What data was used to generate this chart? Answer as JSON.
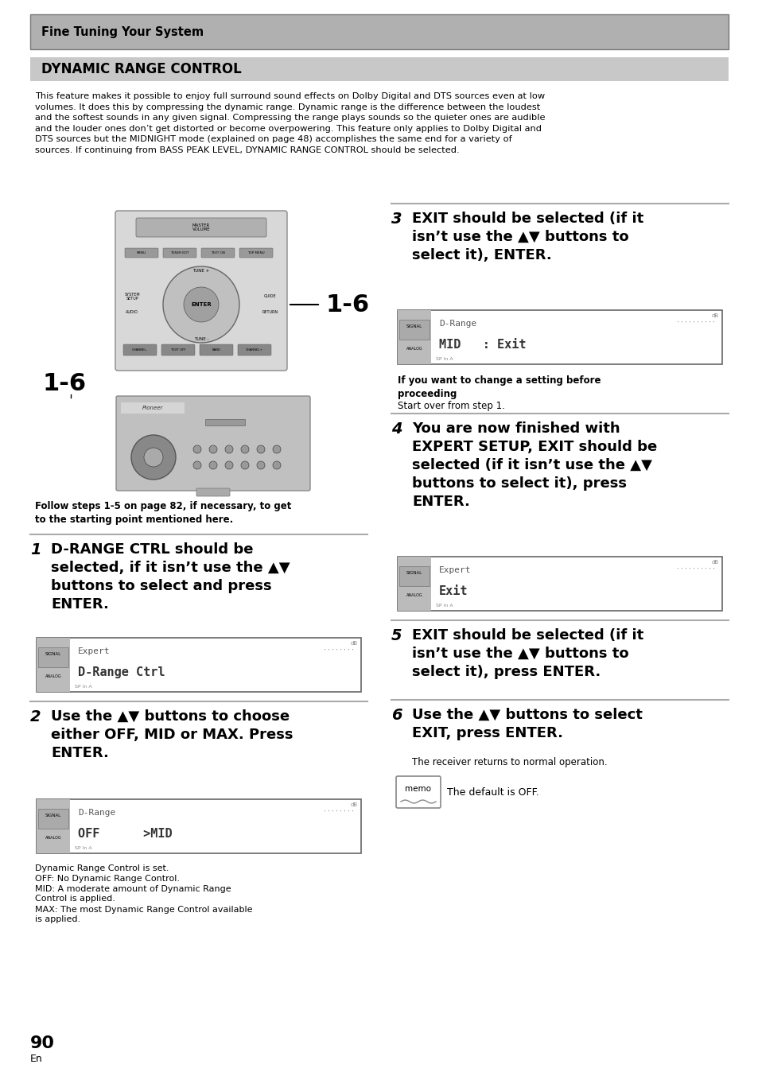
{
  "page_bg": "#ffffff",
  "header_bg": "#b0b0b0",
  "section_bg": "#c8c8c8",
  "header_text": "Fine Tuning Your System",
  "section_title": "DYNAMIC RANGE CONTROL",
  "intro_text": "This feature makes it possible to enjoy full surround sound effects on Dolby Digital and DTS sources even at low\nvolumes. It does this by compressing the dynamic range. Dynamic range is the difference between the loudest\nand the softest sounds in any given signal. Compressing the range plays sounds so the quieter ones are audible\nand the louder ones don’t get distorted or become overpowering. This feature only applies to Dolby Digital and\nDTS sources but the MIDNIGHT mode (explained on page 48) accomplishes the same end for a variety of\nsources. If continuing from BASS PEAK LEVEL, DYNAMIC RANGE CONTROL should be selected.",
  "follow_steps_text": "Follow steps 1-5 on page 82, if necessary, to get\nto the starting point mentioned here.",
  "step1_num": "1",
  "step1_bold": "D-RANGE CTRL should be\nselected, if it isn’t use the ▲▼\nbuttons to select and press\nENTER.",
  "step1_display_line1": "Expert",
  "step1_display_line2": "D-Range Ctrl",
  "step2_num": "2",
  "step2_bold": "Use the ▲▼ buttons to choose\neither OFF, MID or MAX. Press\nENTER.",
  "step2_display_line1": "D-Range",
  "step2_display_line2": "OFF      >MID",
  "step2_note1": "Dynamic Range Control is set.",
  "step2_note2": "OFF: No Dynamic Range Control.",
  "step2_note3": "MID: A moderate amount of Dynamic Range\nControl is applied.",
  "step2_note4": "MAX: The most Dynamic Range Control available\nis applied.",
  "step3_num": "3",
  "step3_bold": "EXIT should be selected (if it\nisn’t use the ▲▼ buttons to\nselect it), ENTER.",
  "step3_display_line1": "D-Range",
  "step3_display_dots1": "··········",
  "step3_display_line2": "MID   : Exit",
  "step3_note_bold": "If you want to change a setting before\nproceeding",
  "step3_note_regular": "Start over from step 1.",
  "step4_num": "4",
  "step4_bold": "You are now finished with\nEXPERT SETUP, EXIT should be\nselected (if it isn’t use the ▲▼\nbuttons to select it), press\nENTER.",
  "step4_display_line1": "Expert",
  "step4_display_dots1": "··········",
  "step4_display_line2": "Exit",
  "step5_num": "5",
  "step5_bold": "EXIT should be selected (if it\nisn’t use the ▲▼ buttons to\nselect it), press ENTER.",
  "step6_num": "6",
  "step6_bold": "Use the ▲▼ buttons to select\nEXIT, press ENTER.",
  "step6_regular": "The receiver returns to normal operation.",
  "memo_text": "The default is OFF.",
  "page_number": "90",
  "page_sub": "En",
  "label_16": "1-6"
}
